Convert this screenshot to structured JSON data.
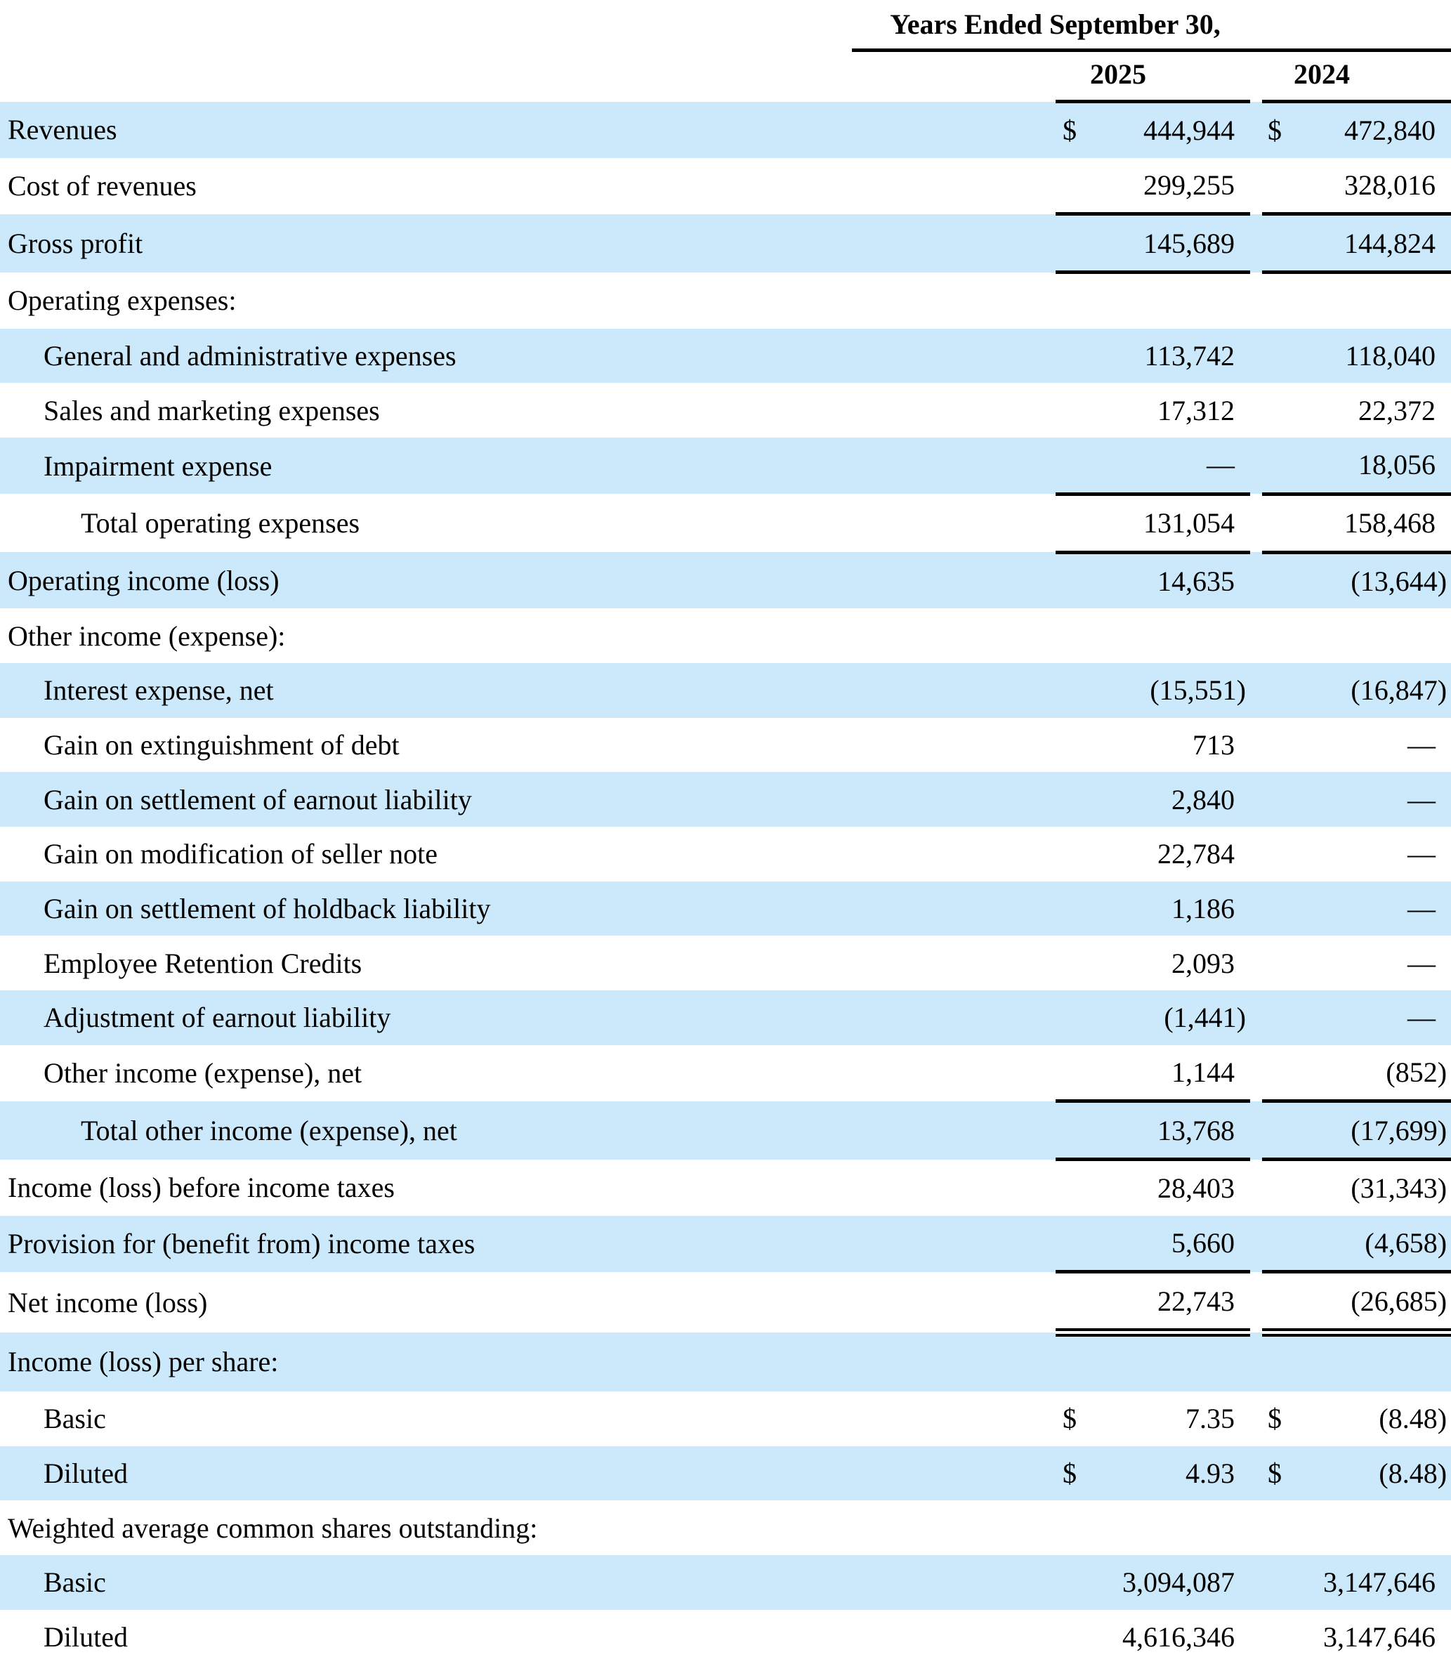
{
  "colors": {
    "row_stripe": "#cce9fb",
    "rule": "#000000",
    "background": "#ffffff",
    "text": "#000000"
  },
  "table": {
    "header": {
      "period_label": "Years Ended September 30,",
      "years": [
        "2025",
        "2024"
      ]
    },
    "rows": [
      {
        "label": "Revenues",
        "indent": 0,
        "shaded": true,
        "d1": "$",
        "v1": "444,944",
        "d2": "$",
        "v2": "472,840",
        "line": "none"
      },
      {
        "label": "Cost of revenues",
        "indent": 0,
        "shaded": false,
        "d1": "",
        "v1": "299,255",
        "d2": "",
        "v2": "328,016",
        "line": "single"
      },
      {
        "label": "Gross profit",
        "indent": 0,
        "shaded": true,
        "d1": "",
        "v1": "145,689",
        "d2": "",
        "v2": "144,824",
        "line": "single"
      },
      {
        "label": "Operating expenses:",
        "indent": 0,
        "shaded": false,
        "d1": "",
        "v1": "",
        "d2": "",
        "v2": "",
        "line": "none"
      },
      {
        "label": "General and administrative expenses",
        "indent": 1,
        "shaded": true,
        "d1": "",
        "v1": "113,742",
        "d2": "",
        "v2": "118,040",
        "line": "none"
      },
      {
        "label": "Sales and marketing expenses",
        "indent": 1,
        "shaded": false,
        "d1": "",
        "v1": "17,312",
        "d2": "",
        "v2": "22,372",
        "line": "none"
      },
      {
        "label": "Impairment expense",
        "indent": 1,
        "shaded": true,
        "d1": "",
        "v1": "—",
        "d2": "",
        "v2": "18,056",
        "line": "single"
      },
      {
        "label": "Total operating expenses",
        "indent": 2,
        "shaded": false,
        "d1": "",
        "v1": "131,054",
        "d2": "",
        "v2": "158,468",
        "line": "single"
      },
      {
        "label": "Operating income (loss)",
        "indent": 0,
        "shaded": true,
        "d1": "",
        "v1": "14,635",
        "d2": "",
        "v2": "(13,644)",
        "line": "none"
      },
      {
        "label": "Other income (expense):",
        "indent": 0,
        "shaded": false,
        "d1": "",
        "v1": "",
        "d2": "",
        "v2": "",
        "line": "none"
      },
      {
        "label": "Interest expense, net",
        "indent": 1,
        "shaded": true,
        "d1": "",
        "v1": "(15,551)",
        "d2": "",
        "v2": "(16,847)",
        "line": "none"
      },
      {
        "label": "Gain on extinguishment of debt",
        "indent": 1,
        "shaded": false,
        "d1": "",
        "v1": "713",
        "d2": "",
        "v2": "—",
        "line": "none"
      },
      {
        "label": "Gain on settlement of earnout liability",
        "indent": 1,
        "shaded": true,
        "d1": "",
        "v1": "2,840",
        "d2": "",
        "v2": "—",
        "line": "none"
      },
      {
        "label": "Gain on modification of seller note",
        "indent": 1,
        "shaded": false,
        "d1": "",
        "v1": "22,784",
        "d2": "",
        "v2": "—",
        "line": "none"
      },
      {
        "label": "Gain on settlement of holdback liability",
        "indent": 1,
        "shaded": true,
        "d1": "",
        "v1": "1,186",
        "d2": "",
        "v2": "—",
        "line": "none"
      },
      {
        "label": "Employee Retention Credits",
        "indent": 1,
        "shaded": false,
        "d1": "",
        "v1": "2,093",
        "d2": "",
        "v2": "—",
        "line": "none"
      },
      {
        "label": "Adjustment of earnout liability",
        "indent": 1,
        "shaded": true,
        "d1": "",
        "v1": "(1,441)",
        "d2": "",
        "v2": "—",
        "line": "none"
      },
      {
        "label": "Other income (expense), net",
        "indent": 1,
        "shaded": false,
        "d1": "",
        "v1": "1,144",
        "d2": "",
        "v2": "(852)",
        "line": "single"
      },
      {
        "label": "Total other income (expense), net",
        "indent": 2,
        "shaded": true,
        "d1": "",
        "v1": "13,768",
        "d2": "",
        "v2": "(17,699)",
        "line": "single"
      },
      {
        "label": "Income (loss) before income taxes",
        "indent": 0,
        "shaded": false,
        "d1": "",
        "v1": "28,403",
        "d2": "",
        "v2": "(31,343)",
        "line": "none"
      },
      {
        "label": "Provision for (benefit from) income taxes",
        "indent": 0,
        "shaded": true,
        "d1": "",
        "v1": "5,660",
        "d2": "",
        "v2": "(4,658)",
        "line": "single"
      },
      {
        "label": "Net income (loss)",
        "indent": 0,
        "shaded": false,
        "d1": "",
        "v1": "22,743",
        "d2": "",
        "v2": "(26,685)",
        "line": "double"
      },
      {
        "label": "Income (loss) per share:",
        "indent": 0,
        "shaded": true,
        "d1": "",
        "v1": "",
        "d2": "",
        "v2": "",
        "line": "none"
      },
      {
        "label": "Basic",
        "indent": 1,
        "shaded": false,
        "d1": "$",
        "v1": "7.35",
        "d2": "$",
        "v2": "(8.48)",
        "line": "none"
      },
      {
        "label": "Diluted",
        "indent": 1,
        "shaded": true,
        "d1": "$",
        "v1": "4.93",
        "d2": "$",
        "v2": "(8.48)",
        "line": "none"
      },
      {
        "label": "Weighted average common shares outstanding:",
        "indent": 0,
        "shaded": false,
        "d1": "",
        "v1": "",
        "d2": "",
        "v2": "",
        "line": "none"
      },
      {
        "label": "Basic",
        "indent": 1,
        "shaded": true,
        "d1": "",
        "v1": "3,094,087",
        "d2": "",
        "v2": "3,147,646",
        "line": "none"
      },
      {
        "label": "Diluted",
        "indent": 1,
        "shaded": false,
        "d1": "",
        "v1": "4,616,346",
        "d2": "",
        "v2": "3,147,646",
        "line": "none"
      }
    ]
  }
}
